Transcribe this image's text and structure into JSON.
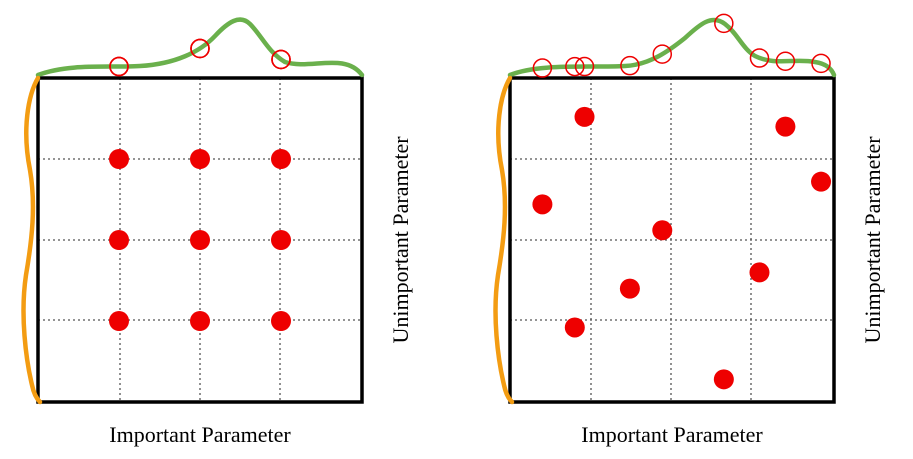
{
  "colors": {
    "background": "#ffffff",
    "frame": "#000000",
    "gridline": "#555555",
    "sample_point": "#ee0000",
    "important_marginal": "#6ab04c",
    "unimportant_marginal": "#f39c12"
  },
  "panels": [
    {
      "id": "grid-layout",
      "xlabel": "Important Parameter",
      "ylabel": "Unimportant Parameter",
      "points": [
        [
          0.25,
          0.75
        ],
        [
          0.5,
          0.75
        ],
        [
          0.75,
          0.75
        ],
        [
          0.25,
          0.5
        ],
        [
          0.5,
          0.5
        ],
        [
          0.75,
          0.5
        ],
        [
          0.25,
          0.25
        ],
        [
          0.5,
          0.25
        ],
        [
          0.75,
          0.25
        ]
      ]
    },
    {
      "id": "random-layout",
      "xlabel": "Important Parameter",
      "ylabel": "Unimportant Parameter",
      "points": [
        [
          0.23,
          0.88
        ],
        [
          0.85,
          0.85
        ],
        [
          0.96,
          0.68
        ],
        [
          0.1,
          0.61
        ],
        [
          0.47,
          0.53
        ],
        [
          0.77,
          0.4
        ],
        [
          0.37,
          0.35
        ],
        [
          0.2,
          0.23
        ],
        [
          0.66,
          0.07
        ]
      ]
    }
  ]
}
